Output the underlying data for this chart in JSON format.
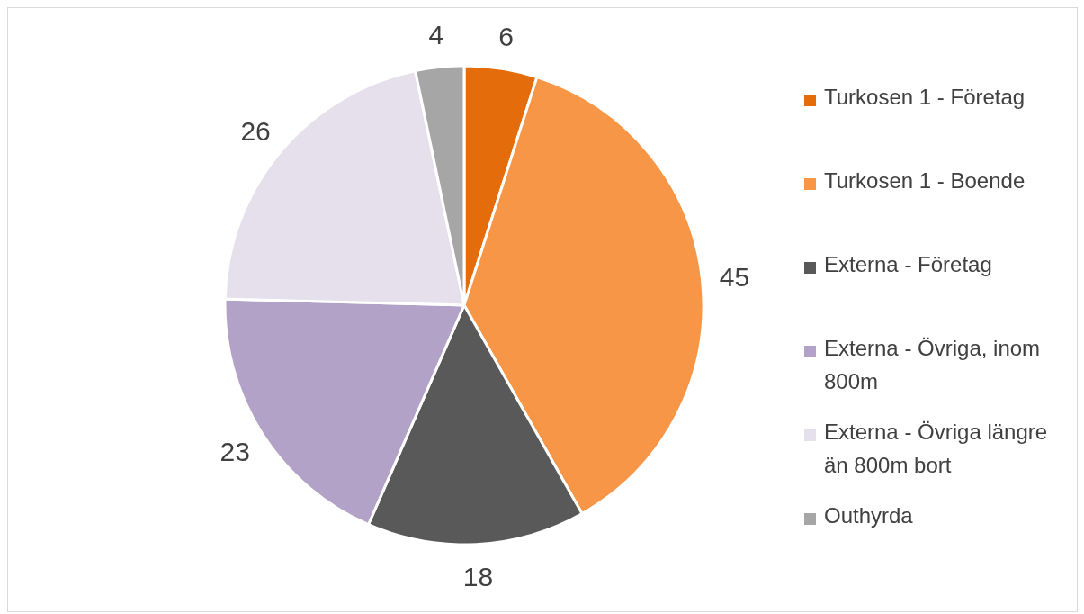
{
  "chart_data": {
    "type": "pie",
    "categories": [
      "Turkosen 1 - Företag",
      "Turkosen 1 - Boende",
      "Externa - Företag",
      "Externa - Övriga, inom 800m",
      "Externa - Övriga längre än 800m bort",
      "Outhyrda"
    ],
    "values": [
      6,
      45,
      18,
      23,
      26,
      4
    ],
    "colors": [
      "#e46c0a",
      "#f79646",
      "#595959",
      "#b3a2c7",
      "#e6e0ec",
      "#a6a6a6"
    ],
    "data_labels": true,
    "legend": "right"
  }
}
